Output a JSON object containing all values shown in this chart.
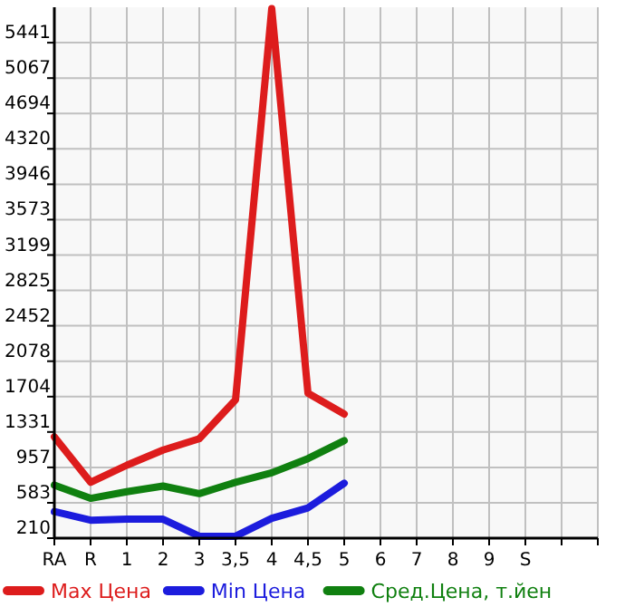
{
  "chart_data": {
    "type": "line",
    "categories": [
      "RA",
      "R",
      "1",
      "2",
      "3",
      "3,5",
      "4",
      "4,5",
      "5",
      "6",
      "7",
      "8",
      "9",
      "S",
      null,
      null
    ],
    "series": [
      {
        "name": "Max Цена",
        "color": "#dd1c1c",
        "values": [
          1280,
          800,
          980,
          1140,
          1260,
          1670,
          5800,
          1740,
          1520,
          null,
          null,
          null,
          null,
          null,
          null,
          null
        ]
      },
      {
        "name": "Min Цена",
        "color": "#1c1cdd",
        "values": [
          490,
          400,
          410,
          410,
          230,
          230,
          420,
          530,
          790,
          null,
          null,
          null,
          null,
          null,
          null,
          null
        ]
      },
      {
        "name": "Сред.Цена, т.йен",
        "color": "#108010",
        "values": [
          770,
          630,
          700,
          760,
          680,
          800,
          900,
          1050,
          1240,
          null,
          null,
          null,
          null,
          null,
          null,
          null
        ]
      }
    ],
    "ylim": [
      210,
      5815
    ],
    "yticks": [
      210,
      583,
      957,
      1331,
      1704,
      2078,
      2452,
      2825,
      3199,
      3573,
      3946,
      4320,
      4694,
      5067,
      5441
    ],
    "grid": true,
    "legend": "bottom",
    "marker": "none",
    "line_style": "solid"
  }
}
